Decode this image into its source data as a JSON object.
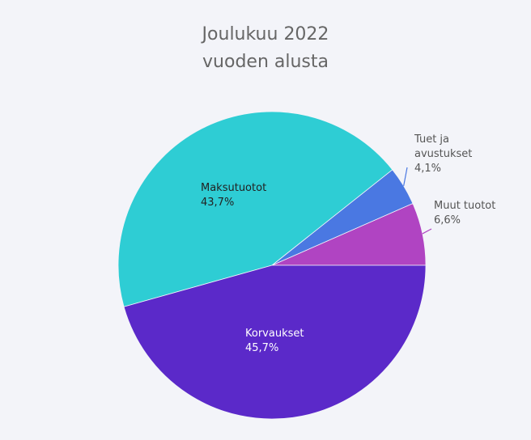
{
  "chart_data": {
    "type": "pie",
    "title": [
      "Joulukuu 2022",
      "vuoden alusta"
    ],
    "categories": [
      "Muut tuotot",
      "Tuet ja avustukset",
      "Maksutuotot",
      "Korvaukset"
    ],
    "values": [
      6.6,
      4.1,
      43.7,
      45.7
    ],
    "value_labels": [
      "6,6%",
      "4,1%",
      "43,7%",
      "45,7%"
    ],
    "colors": [
      "#b044c2",
      "#4a78e2",
      "#2ecdd4",
      "#5b29c9"
    ]
  }
}
